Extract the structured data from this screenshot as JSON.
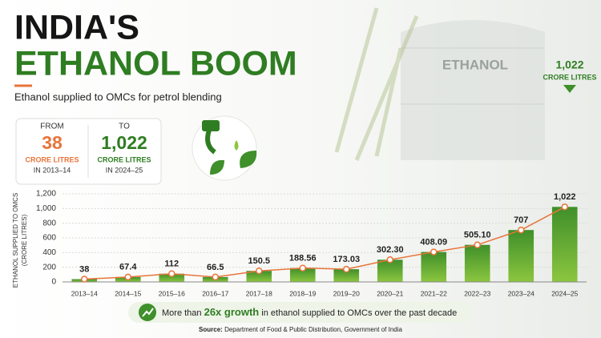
{
  "header": {
    "title_line1": "INDIA'S",
    "title_line2": "ETHANOL BOOM",
    "subtitle": "Ethanol supplied to OMCs for petrol blending"
  },
  "summary": {
    "from": {
      "label": "FROM",
      "value": "38",
      "unit": "CRORE LITRES",
      "year": "IN 2013–14"
    },
    "to": {
      "label": "TO",
      "value": "1,022",
      "unit": "CRORE LITRES",
      "year": "IN 2024–25"
    }
  },
  "tank_label": "ETHANOL",
  "callout": {
    "value": "1,022",
    "unit": "CRORE LITRES"
  },
  "chart_data": {
    "type": "bar",
    "y_label": [
      "ETHANOL SUPPLIED TO OMCS",
      "(CRORE LITRES)"
    ],
    "categories": [
      "2013–14",
      "2014–15",
      "2015–16",
      "2016–17",
      "2017–18",
      "2018–19",
      "2019–20",
      "2020–21",
      "2021–22",
      "2022–23",
      "2023–24",
      "2024–25"
    ],
    "values": [
      38,
      67.4,
      112,
      66.5,
      150.5,
      188.56,
      173.03,
      302.3,
      408.09,
      505.1,
      707,
      1022
    ],
    "value_labels": [
      "38",
      "67.4",
      "112",
      "66.5",
      "150.5",
      "188.56",
      "173.03",
      "302.30",
      "408.09",
      "505.10",
      "707",
      "1,022"
    ],
    "color": "#3f8f2a",
    "line_color": "#e8743b",
    "ylim": [
      0,
      1200
    ],
    "yticks": [
      0,
      200,
      400,
      600,
      800,
      {
        "value": 1000,
        "label": "1,000"
      },
      {
        "value": 1200,
        "label": "1,200"
      }
    ],
    "grid": true
  },
  "footer": {
    "parts": [
      "More than ",
      "26x growth",
      " in ethanol supplied to OMCs over the past decade"
    ],
    "source_label": "Source:",
    "source": "Department of Food & Public Distribution, Government of India"
  }
}
